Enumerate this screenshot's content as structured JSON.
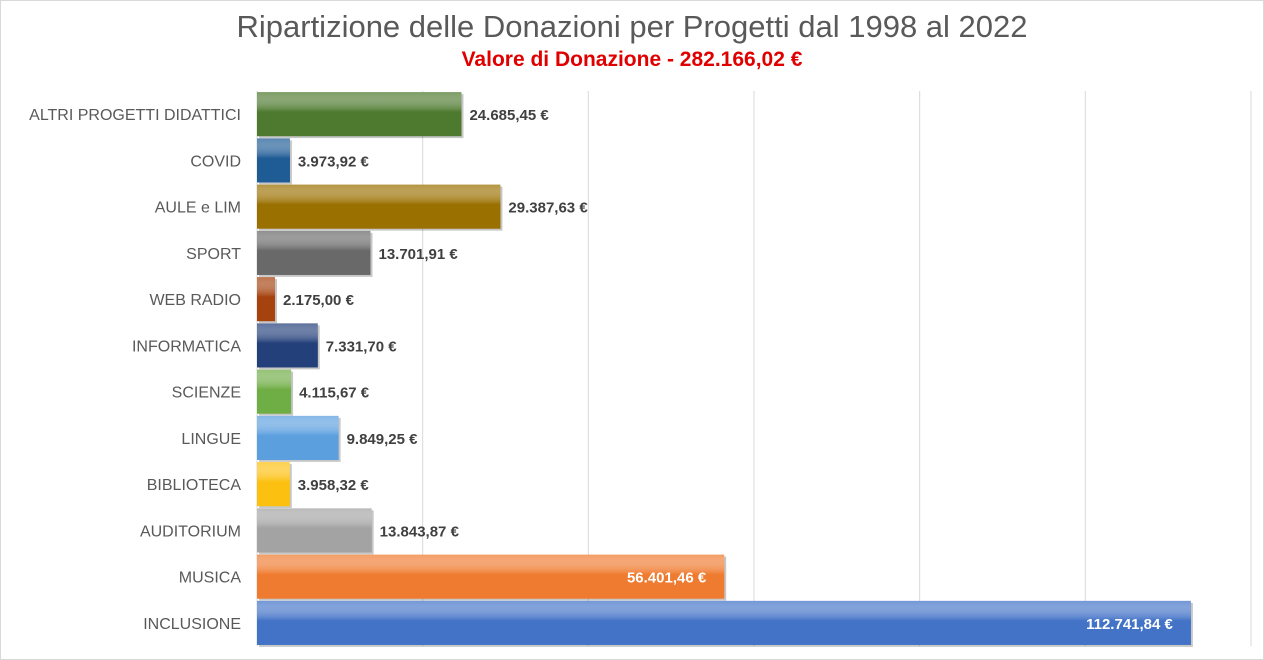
{
  "chart_data": {
    "type": "bar",
    "orientation": "horizontal",
    "title": "Ripartizione delle Donazioni per Progetti dal 1998 al 2022",
    "subtitle": "Valore di Donazione - 282.166,02 €",
    "subtitle_color": "#e00000",
    "xlim": [
      0,
      120000
    ],
    "grid": true,
    "categories": [
      "ALTRI PROGETTI DIDATTICI",
      "COVID",
      "AULE e LIM",
      "SPORT",
      "WEB RADIO",
      "INFORMATICA",
      "SCIENZE",
      "LINGUE",
      "BIBLIOTECA",
      "AUDITORIUM",
      "MUSICA",
      "INCLUSIONE"
    ],
    "values": [
      24685.45,
      3973.92,
      29387.63,
      13701.91,
      2175.0,
      7331.7,
      4115.67,
      9849.25,
      3958.32,
      13843.87,
      56401.46,
      112741.84
    ],
    "value_labels": [
      "24.685,45 €",
      "3.973,92 €",
      "29.387,63 €",
      "13.701,91 €",
      "2.175,00 €",
      "7.331,70 €",
      "4.115,67 €",
      "9.849,25 €",
      "3.958,32 €",
      "13.843,87 €",
      "56.401,46 €",
      "112.741,84 €"
    ],
    "colors": [
      "#4e7a2f",
      "#1f5c96",
      "#9a7000",
      "#696969",
      "#a5420e",
      "#24407a",
      "#6fad45",
      "#5b9fdf",
      "#fcc010",
      "#a3a3a3",
      "#ef7b30",
      "#4373c7"
    ],
    "inside_label_indices": [
      10,
      11
    ]
  }
}
